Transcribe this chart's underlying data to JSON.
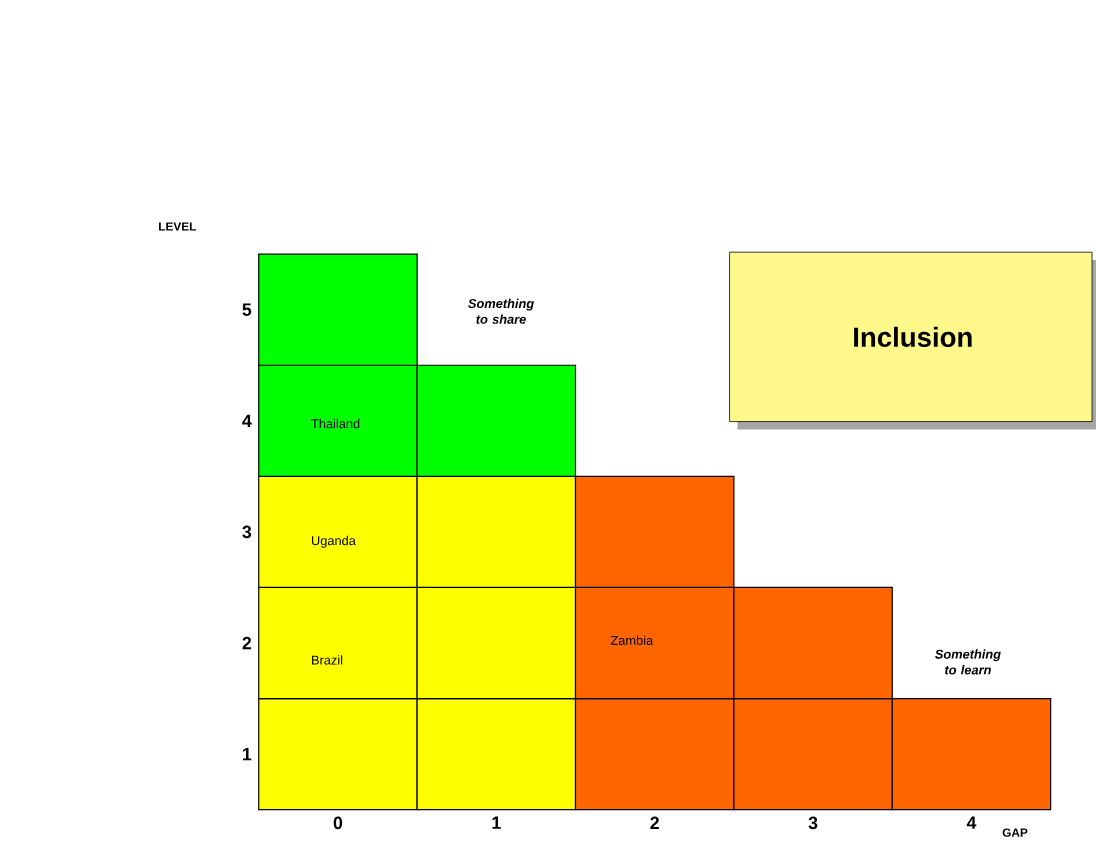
{
  "chart_data": {
    "type": "bar",
    "stacked": true,
    "xlabel": "GAP",
    "ylabel": "LEVEL",
    "categories": [
      "0",
      "1",
      "2",
      "3",
      "4"
    ],
    "ylim": [
      0,
      5
    ],
    "yticks": [
      {
        "value": 0.5,
        "label": "1"
      },
      {
        "value": 1.5,
        "label": "2"
      },
      {
        "value": 2.5,
        "label": "3"
      },
      {
        "value": 3.5,
        "label": "4"
      },
      {
        "value": 4.5,
        "label": "5"
      }
    ],
    "series": [
      {
        "values": [
          1,
          1,
          1,
          1,
          1
        ],
        "colors": [
          "#ffff00",
          "#ffff00",
          "#ff6600",
          "#ff6600",
          "#ff6600"
        ]
      },
      {
        "values": [
          1,
          1,
          1,
          1,
          null
        ],
        "colors": [
          "#ffff00",
          "#ffff00",
          "#ff6600",
          "#ff6600",
          null
        ]
      },
      {
        "values": [
          1,
          1,
          1,
          null,
          null
        ],
        "colors": [
          "#ffff00",
          "#ffff00",
          "#ff6600",
          null,
          null
        ]
      },
      {
        "values": [
          1,
          1,
          null,
          null,
          null
        ],
        "colors": [
          "#00ff00",
          "#00ff00",
          null,
          null,
          null
        ]
      },
      {
        "values": [
          1,
          null,
          null,
          null,
          null
        ],
        "colors": [
          "#00ff00",
          null,
          null,
          null,
          null
        ]
      }
    ],
    "annotations": [
      "Thailand",
      "Uganda",
      "Brazil",
      "Zambia",
      "Something to share",
      "Something to learn",
      "Inclusion"
    ]
  }
}
